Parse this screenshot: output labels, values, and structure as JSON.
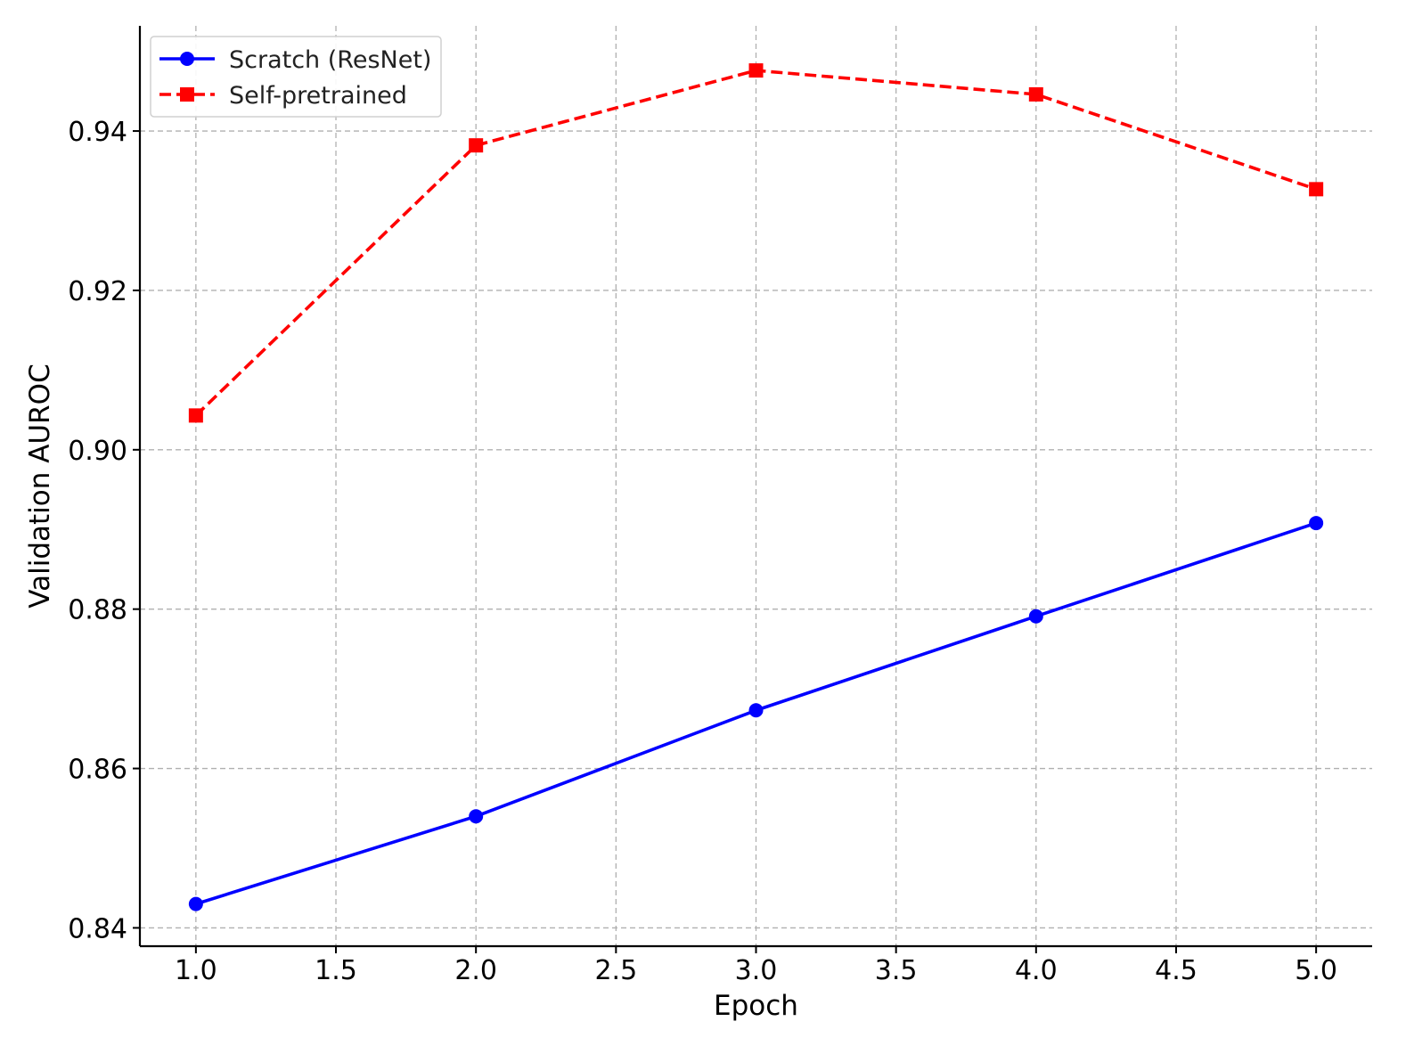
{
  "chart_data": {
    "type": "line",
    "title": "",
    "xlabel": "Epoch",
    "ylabel": "Validation AUROC",
    "xlim": [
      0.8,
      5.2
    ],
    "ylim": [
      0.8377,
      0.9532
    ],
    "xticks": [
      1.0,
      1.5,
      2.0,
      2.5,
      3.0,
      3.5,
      4.0,
      4.5,
      5.0
    ],
    "xtick_labels": [
      "1.0",
      "1.5",
      "2.0",
      "2.5",
      "3.0",
      "3.5",
      "4.0",
      "4.5",
      "5.0"
    ],
    "yticks": [
      0.84,
      0.86,
      0.88,
      0.9,
      0.92,
      0.94
    ],
    "ytick_labels": [
      "0.84",
      "0.86",
      "0.88",
      "0.90",
      "0.92",
      "0.94"
    ],
    "grid": true,
    "legend_position": "top-left",
    "series": [
      {
        "name": "Scratch (ResNet)",
        "x": [
          1,
          2,
          3,
          4,
          5
        ],
        "values": [
          0.843,
          0.854,
          0.8673,
          0.8791,
          0.8908
        ],
        "color": "#0000ff",
        "line_style": "solid",
        "marker": "circle"
      },
      {
        "name": "Self-pretrained",
        "x": [
          1,
          2,
          3,
          4,
          5
        ],
        "values": [
          0.9043,
          0.9382,
          0.9476,
          0.9446,
          0.9327
        ],
        "color": "#ff0000",
        "line_style": "dashed",
        "marker": "square"
      }
    ]
  }
}
